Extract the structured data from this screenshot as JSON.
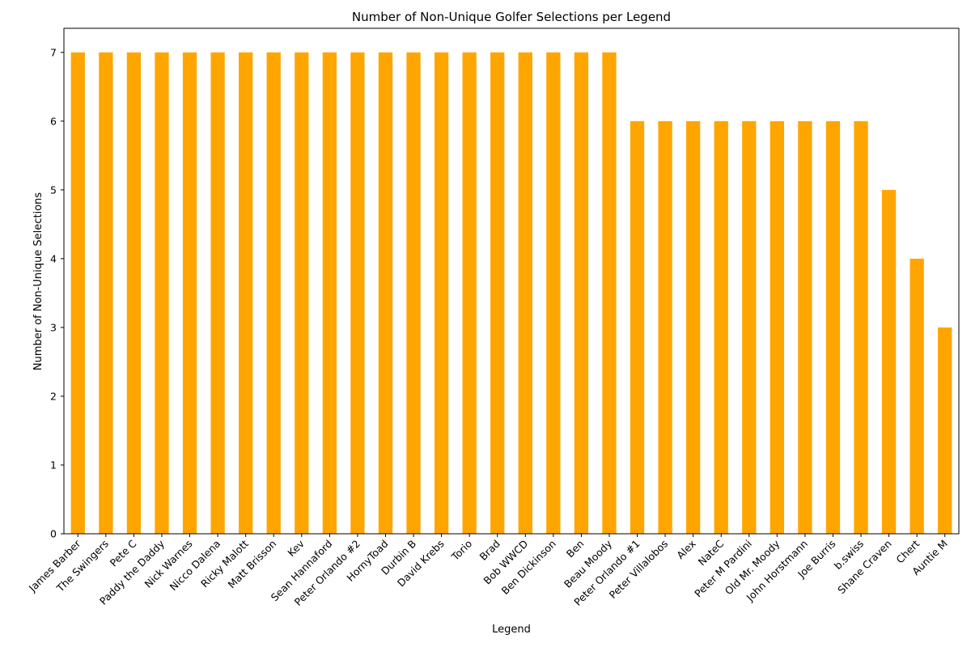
{
  "chart_data": {
    "type": "bar",
    "title": "Number of Non-Unique Golfer Selections per Legend",
    "xlabel": "Legend",
    "ylabel": "Number of Non-Unique Selections",
    "ylim": [
      0,
      7.35
    ],
    "yticks": [
      0,
      1,
      2,
      3,
      4,
      5,
      6,
      7
    ],
    "bar_color": "#FFA500",
    "grid": false,
    "categories": [
      "James Barber",
      "The Swingers",
      "Pete C",
      "Paddy the Daddy",
      "Nick Warnes",
      "Nicco Dalena",
      "Ricky Malott",
      "Matt Brisson",
      "Kev",
      "Sean Hannaford",
      "Peter Orlando #2",
      "HornyToad",
      "Durbin B",
      "David Krebs",
      "Torio",
      "Brad",
      "Bob WWCD",
      "Ben Dickinson",
      "Ben",
      "Beau Moody",
      "Peter Orlando #1",
      "Peter Villalobos",
      "Alex",
      "NateC",
      "Peter M Pardini",
      "Old Mr. Moody",
      "John Horstmann",
      "Joe Burris",
      "b.swiss",
      "Shane Craven",
      "Chert",
      "Auntie M"
    ],
    "values": [
      7,
      7,
      7,
      7,
      7,
      7,
      7,
      7,
      7,
      7,
      7,
      7,
      7,
      7,
      7,
      7,
      7,
      7,
      7,
      7,
      6,
      6,
      6,
      6,
      6,
      6,
      6,
      6,
      6,
      5,
      4,
      3
    ]
  }
}
